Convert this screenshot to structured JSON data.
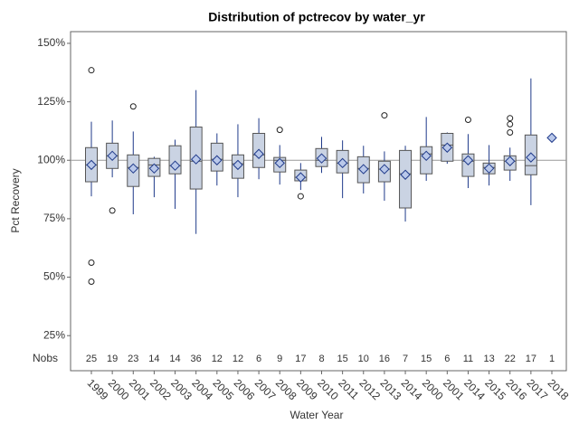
{
  "chart_data": {
    "type": "box",
    "title": "Distribution of pctrecov by water_yr",
    "x_label": "Water Year",
    "y_label": "Pct Recovery",
    "count_label": "Nobs",
    "categories": [
      "1999",
      "2000",
      "2001",
      "2002",
      "2003",
      "2004",
      "2005",
      "2006",
      "2007",
      "2008",
      "2009",
      "2010",
      "2011",
      "2012",
      "2013",
      "2014",
      "2000",
      "2001",
      "2014",
      "2015",
      "2016",
      "2017",
      "2018"
    ],
    "nobs": [
      25,
      19,
      23,
      14,
      14,
      36,
      12,
      12,
      6,
      9,
      17,
      8,
      15,
      10,
      16,
      7,
      15,
      6,
      11,
      13,
      22,
      17,
      1
    ],
    "whisker_high": [
      116.5,
      117,
      112.3,
      101.5,
      108.8,
      130,
      111.5,
      115.4,
      118,
      106.5,
      98.8,
      110,
      108.5,
      106.2,
      103.8,
      106.2,
      118.5,
      111.9,
      111.2,
      106.5,
      105.4,
      135,
      null
    ],
    "q3": [
      105.4,
      107.3,
      102.3,
      100.8,
      106.2,
      114.2,
      107.3,
      102.3,
      111.5,
      101.2,
      95.8,
      105,
      104.2,
      101.5,
      99.6,
      104.2,
      105.8,
      111.5,
      102.7,
      98.8,
      101.9,
      110.8,
      null
    ],
    "median": [
      98,
      101.9,
      96.9,
      98,
      97.7,
      99.6,
      100.4,
      98.5,
      102.3,
      100,
      92.7,
      100,
      98.8,
      96.5,
      96.2,
      94.2,
      102.7,
      106.5,
      99.6,
      96.9,
      99.6,
      97.7,
      null
    ],
    "q1": [
      90.8,
      96.5,
      88.8,
      93.1,
      94.2,
      87.7,
      95.4,
      92.3,
      96.9,
      95,
      91.2,
      97.3,
      94.6,
      90.4,
      90.8,
      79.6,
      94.2,
      99.6,
      93.1,
      94.2,
      95.8,
      93.8,
      null
    ],
    "whisker_low": [
      84.6,
      92.7,
      76.9,
      84.2,
      79.2,
      68.5,
      89.2,
      84.2,
      91.9,
      89.6,
      87.3,
      94.6,
      83.8,
      85.8,
      82.7,
      73.8,
      91.2,
      98.5,
      88.1,
      89.2,
      91.2,
      80.8,
      null
    ],
    "mean": [
      98,
      101.9,
      96.5,
      96.5,
      97.7,
      100.4,
      100,
      98,
      102.7,
      98.8,
      92.7,
      100.8,
      98.8,
      96.2,
      96.2,
      93.8,
      101.9,
      105.4,
      100,
      96.5,
      99.6,
      101.2,
      109.6
    ],
    "outliers": [
      [
        138.5,
        56.2,
        48.1
      ],
      [
        78.5
      ],
      [
        123
      ],
      [],
      [],
      [],
      [],
      [],
      [],
      [
        113
      ],
      [
        84.6
      ],
      [],
      [],
      [],
      [
        119.2
      ],
      [],
      [],
      [],
      [
        117.3
      ],
      [],
      [
        118,
        115.4,
        111.9
      ],
      [],
      []
    ],
    "reference_line": 100,
    "box_color": "#cad3e3",
    "whisker_color": "#1f3a8a",
    "mean_color": "#b9c8ea",
    "ylim": [
      10,
      155
    ],
    "yticks": [
      {
        "value": 25,
        "label": "25%"
      },
      {
        "value": 50,
        "label": "50%"
      },
      {
        "value": 75,
        "label": "75%"
      },
      {
        "value": 100,
        "label": "100%"
      },
      {
        "value": 125,
        "label": "125%"
      },
      {
        "value": 150,
        "label": "150%"
      }
    ]
  }
}
